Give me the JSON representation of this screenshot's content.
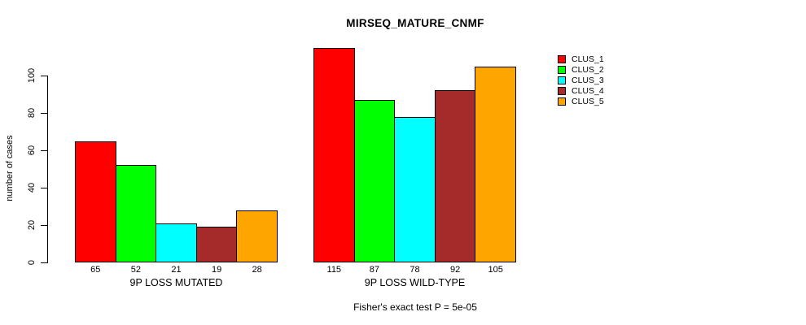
{
  "chart_data": {
    "type": "bar",
    "title": "MIRSEQ_MATURE_CNMF",
    "xlabel": "",
    "ylabel": "number of cases",
    "annotation": "Fisher's exact test P = 5e-05",
    "categories": [
      "9P LOSS MUTATED",
      "9P LOSS WILD-TYPE"
    ],
    "series": [
      {
        "name": "CLUS_1",
        "color": "#FF0000",
        "values": [
          65,
          115
        ]
      },
      {
        "name": "CLUS_2",
        "color": "#00FF00",
        "values": [
          52,
          87
        ]
      },
      {
        "name": "CLUS_3",
        "color": "#00FFFF",
        "values": [
          21,
          78
        ]
      },
      {
        "name": "CLUS_4",
        "color": "#A52A2A",
        "values": [
          19,
          92
        ]
      },
      {
        "name": "CLUS_5",
        "color": "#FFA500",
        "values": [
          28,
          105
        ]
      }
    ],
    "bar_value_labels": [
      [
        65,
        52,
        21,
        19,
        28
      ],
      [
        115,
        87,
        78,
        92,
        105
      ]
    ],
    "yticks": [
      0,
      20,
      40,
      60,
      80,
      100
    ],
    "ylim": [
      0,
      115
    ],
    "grid": false,
    "legend_position": "right",
    "bar_outline_color": "#000000",
    "background_color": "#FFFFFF"
  }
}
